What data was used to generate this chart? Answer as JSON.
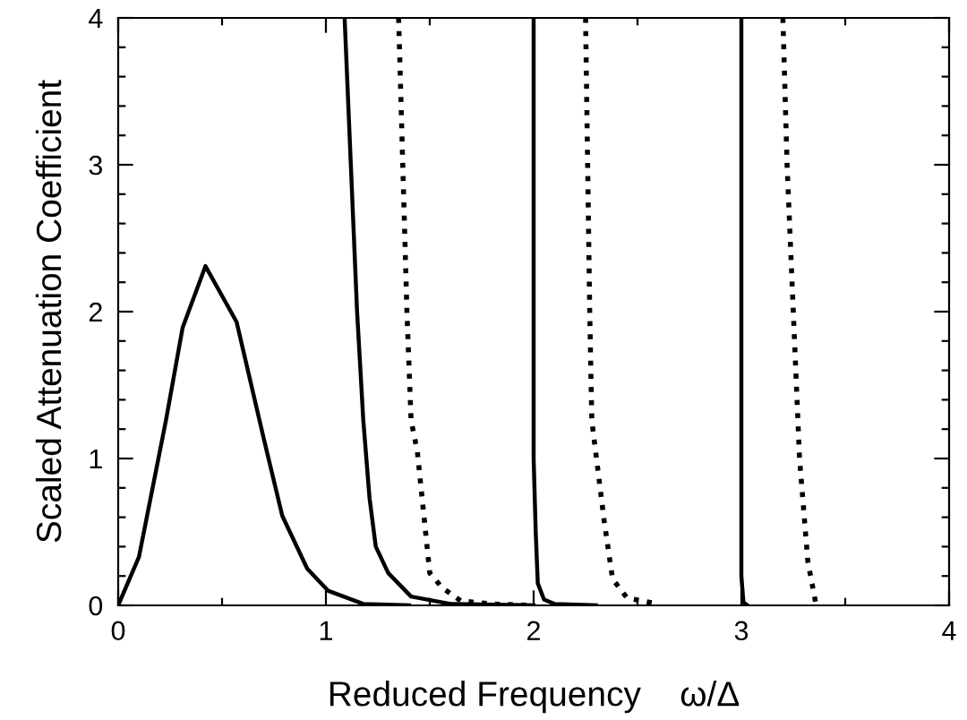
{
  "chart_data": {
    "type": "line",
    "xlabel": "Reduced Frequency    ω/Δ",
    "ylabel": "Scaled Attenuation Coefficient",
    "xlim": [
      0,
      4
    ],
    "ylim": [
      0,
      4
    ],
    "xticks": [
      0,
      {
        "value": 0.5,
        "label": null
      },
      1,
      {
        "value": 1.5,
        "label": null
      },
      2,
      {
        "value": 2.5,
        "label": null
      },
      3,
      {
        "value": 3.5,
        "label": null
      },
      4
    ],
    "yticks": [
      0,
      {
        "value": 0.2,
        "label": null
      },
      {
        "value": 0.4,
        "label": null
      },
      {
        "value": 0.6,
        "label": null
      },
      {
        "value": 0.8,
        "label": null
      },
      1,
      {
        "value": 1.2,
        "label": null
      },
      {
        "value": 1.4,
        "label": null
      },
      {
        "value": 1.6,
        "label": null
      },
      {
        "value": 1.8,
        "label": null
      },
      2,
      {
        "value": 2.2,
        "label": null
      },
      {
        "value": 2.4,
        "label": null
      },
      {
        "value": 2.6,
        "label": null
      },
      {
        "value": 2.8,
        "label": null
      },
      3,
      {
        "value": 3.2,
        "label": null
      },
      {
        "value": 3.4,
        "label": null
      },
      {
        "value": 3.6,
        "label": null
      },
      {
        "value": 3.8,
        "label": null
      },
      4
    ],
    "grid": false,
    "series": [
      {
        "color": "#000000",
        "line_style": "solid",
        "x": [
          0,
          0.1,
          0.23,
          0.31,
          0.42,
          0.57,
          0.7,
          0.79,
          0.91,
          1.01,
          1.18,
          1.4
        ],
        "values": [
          0,
          0.33,
          1.26,
          1.89,
          2.31,
          1.93,
          1.14,
          0.61,
          0.25,
          0.1,
          0.01,
          0
        ]
      },
      {
        "color": "#000000",
        "line_style": "solid",
        "x": [
          1.09,
          1.12,
          1.15,
          1.18,
          1.21,
          1.24,
          1.3,
          1.41,
          1.6,
          2.0
        ],
        "values": [
          4,
          3,
          2,
          1.26,
          0.73,
          0.4,
          0.22,
          0.06,
          0.01,
          0
        ]
      },
      {
        "color": "#000000",
        "line_style": "dotted",
        "x": [
          1.35,
          1.37,
          1.39,
          1.41,
          1.44,
          1.5,
          1.56,
          1.65,
          1.8,
          2.0
        ],
        "values": [
          4,
          3,
          2,
          1.26,
          1.05,
          0.22,
          0.12,
          0.03,
          0.01,
          0
        ]
      },
      {
        "color": "#000000",
        "line_style": "solid",
        "x": [
          2.0,
          2.0,
          2.01,
          2.02,
          2.05,
          2.1,
          2.3
        ],
        "values": [
          4,
          1,
          0.5,
          0.15,
          0.04,
          0.01,
          0
        ]
      },
      {
        "color": "#000000",
        "line_style": "dotted",
        "x": [
          2.25,
          2.26,
          2.27,
          2.28,
          2.34,
          2.38,
          2.45,
          2.6
        ],
        "values": [
          4,
          3,
          2,
          1.26,
          0.57,
          0.18,
          0.05,
          0.01
        ]
      },
      {
        "color": "#000000",
        "line_style": "solid",
        "x": [
          3,
          3,
          3.01,
          3.03
        ],
        "values": [
          4,
          0.2,
          0.02,
          0
        ]
      },
      {
        "color": "#000000",
        "line_style": "dotted",
        "x": [
          3.2,
          3.22,
          3.25,
          3.28,
          3.32,
          3.36
        ],
        "values": [
          4,
          3,
          2,
          1,
          0.3,
          0
        ]
      }
    ]
  }
}
